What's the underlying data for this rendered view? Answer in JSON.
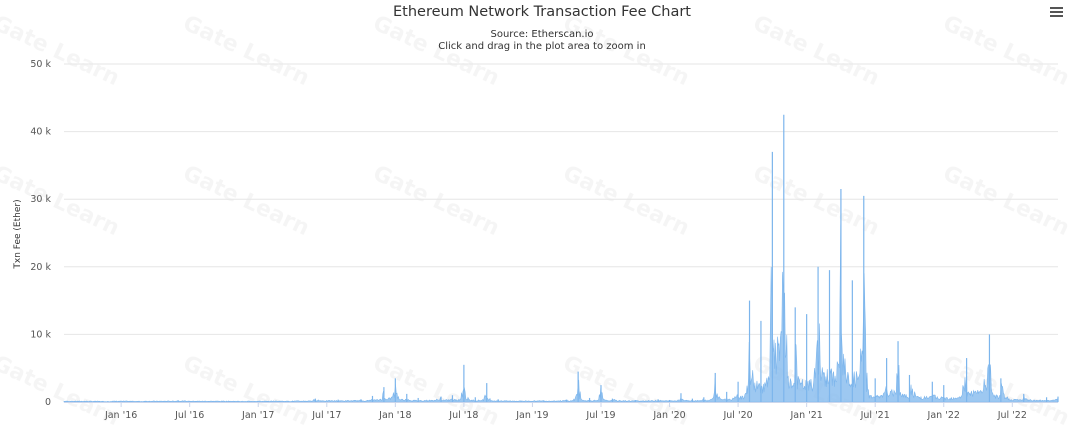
{
  "chart_data": {
    "type": "area",
    "title": "Ethereum Network Transaction Fee Chart",
    "subtitle": "Source: Etherscan.io",
    "subtitle2": "Click and drag in the plot area to zoom in",
    "ylabel": "Txn Fee (Ether)",
    "xlabel": "",
    "ylim": [
      0,
      50000
    ],
    "yticks": [
      {
        "value": 0,
        "label": "0"
      },
      {
        "value": 10000,
        "label": "10 k"
      },
      {
        "value": 20000,
        "label": "20 k"
      },
      {
        "value": 30000,
        "label": "30 k"
      },
      {
        "value": 40000,
        "label": "40 k"
      },
      {
        "value": 50000,
        "label": "50 k"
      }
    ],
    "xlim": [
      "2015-08",
      "2022-11"
    ],
    "xticks": [
      {
        "date": "2016-01",
        "label": "Jan '16"
      },
      {
        "date": "2016-07",
        "label": "Jul '16"
      },
      {
        "date": "2017-01",
        "label": "Jan '17"
      },
      {
        "date": "2017-07",
        "label": "Jul '17"
      },
      {
        "date": "2018-01",
        "label": "Jan '18"
      },
      {
        "date": "2018-07",
        "label": "Jul '18"
      },
      {
        "date": "2019-01",
        "label": "Jan '19"
      },
      {
        "date": "2019-07",
        "label": "Jul '19"
      },
      {
        "date": "2020-01",
        "label": "Jan '20"
      },
      {
        "date": "2020-07",
        "label": "Jul '20"
      },
      {
        "date": "2021-01",
        "label": "Jan '21"
      },
      {
        "date": "2021-07",
        "label": "Jul '21"
      },
      {
        "date": "2022-01",
        "label": "Jan '22"
      },
      {
        "date": "2022-07",
        "label": "Jul '22"
      }
    ],
    "series": [
      {
        "name": "Txn Fee (Ether)",
        "color": "#7cb5ec",
        "points": [
          [
            "2015-08",
            5
          ],
          [
            "2015-12",
            20
          ],
          [
            "2016-03",
            30
          ],
          [
            "2016-06",
            250
          ],
          [
            "2016-09",
            40
          ],
          [
            "2016-12",
            50
          ],
          [
            "2017-02",
            80
          ],
          [
            "2017-04",
            120
          ],
          [
            "2017-06",
            500
          ],
          [
            "2017-08",
            350
          ],
          [
            "2017-10",
            400
          ],
          [
            "2017-11",
            900
          ],
          [
            "2017-12",
            2200
          ],
          [
            "2018-01",
            3500
          ],
          [
            "2018-02",
            1200
          ],
          [
            "2018-03",
            600
          ],
          [
            "2018-05",
            800
          ],
          [
            "2018-06",
            1000
          ],
          [
            "2018-07",
            5500
          ],
          [
            "2018-08",
            700
          ],
          [
            "2018-09",
            2800
          ],
          [
            "2018-10",
            400
          ],
          [
            "2018-12",
            200
          ],
          [
            "2019-02",
            250
          ],
          [
            "2019-04",
            350
          ],
          [
            "2019-05",
            4500
          ],
          [
            "2019-06",
            600
          ],
          [
            "2019-07",
            2500
          ],
          [
            "2019-08",
            500
          ],
          [
            "2019-10",
            300
          ],
          [
            "2019-12",
            400
          ],
          [
            "2020-01",
            300
          ],
          [
            "2020-02",
            1300
          ],
          [
            "2020-03",
            500
          ],
          [
            "2020-04",
            700
          ],
          [
            "2020-05",
            4300
          ],
          [
            "2020-06",
            1500
          ],
          [
            "2020-07",
            3000
          ],
          [
            "2020-08",
            15000
          ],
          [
            "2020-09",
            12000
          ],
          [
            "2020-10",
            37000
          ],
          [
            "2020-11",
            42500
          ],
          [
            "2020-12",
            14000
          ],
          [
            "2021-01",
            13000
          ],
          [
            "2021-02",
            20000
          ],
          [
            "2021-03",
            19500
          ],
          [
            "2021-04",
            31500
          ],
          [
            "2021-05",
            18000
          ],
          [
            "2021-06",
            30500
          ],
          [
            "2021-07",
            3500
          ],
          [
            "2021-08",
            6500
          ],
          [
            "2021-09",
            9000
          ],
          [
            "2021-10",
            4000
          ],
          [
            "2021-12",
            3000
          ],
          [
            "2022-01",
            2500
          ],
          [
            "2022-03",
            6500
          ],
          [
            "2022-05",
            10000
          ],
          [
            "2022-06",
            3500
          ],
          [
            "2022-08",
            1200
          ],
          [
            "2022-10",
            700
          ],
          [
            "2022-11",
            800
          ]
        ]
      }
    ],
    "watermark": "Gate Learn"
  }
}
